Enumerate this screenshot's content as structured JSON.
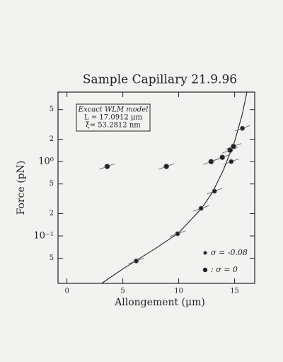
{
  "chart_data": {
    "type": "scatter",
    "title": "Sample Capillary 21.9.96",
    "x_label": "Allongement (μm)",
    "y_label": "Force (pN)",
    "annotation": [
      "Excact WLM model",
      "L =  17.0912 μm",
      "ξ= 53.2812 nm"
    ],
    "xlim": [
      -0.8,
      16.8
    ],
    "xticks": [
      0,
      5,
      10,
      15
    ],
    "ylim": [
      0.023,
      8.6
    ],
    "log_y": true,
    "yticks": [
      5,
      2,
      {
        "value": 1,
        "label": "10⁰"
      },
      {
        "value": 0.5,
        "label": "5"
      },
      {
        "value": 0.2,
        "label": "2"
      },
      {
        "value": 0.1,
        "label": "10⁻¹"
      },
      {
        "value": 0.05,
        "label": "5"
      }
    ],
    "legend": "lower right",
    "series": [
      {
        "name": "σ = -0.08",
        "color": "#222222",
        "x": [
          3.6,
          8.9,
          12.9,
          13.9,
          14.6,
          14.9
        ],
        "values": [
          0.86,
          0.86,
          1.0,
          1.14,
          1.42,
          1.6
        ]
      },
      {
        "name": ": σ = 0",
        "color": "#222222",
        "x": [
          6.2,
          9.9,
          12,
          13.2,
          14.7,
          15.7
        ],
        "values": [
          0.046,
          0.107,
          0.235,
          0.4,
          1.0,
          2.8
        ]
      }
    ],
    "fit": {
      "color": "#222222",
      "x": [
        3.1,
        5,
        8,
        10,
        12,
        13,
        14,
        15,
        15.7,
        16.1
      ],
      "values": [
        0.023,
        0.036,
        0.069,
        0.11,
        0.23,
        0.38,
        0.77,
        1.85,
        4.4,
        8.6
      ]
    }
  }
}
